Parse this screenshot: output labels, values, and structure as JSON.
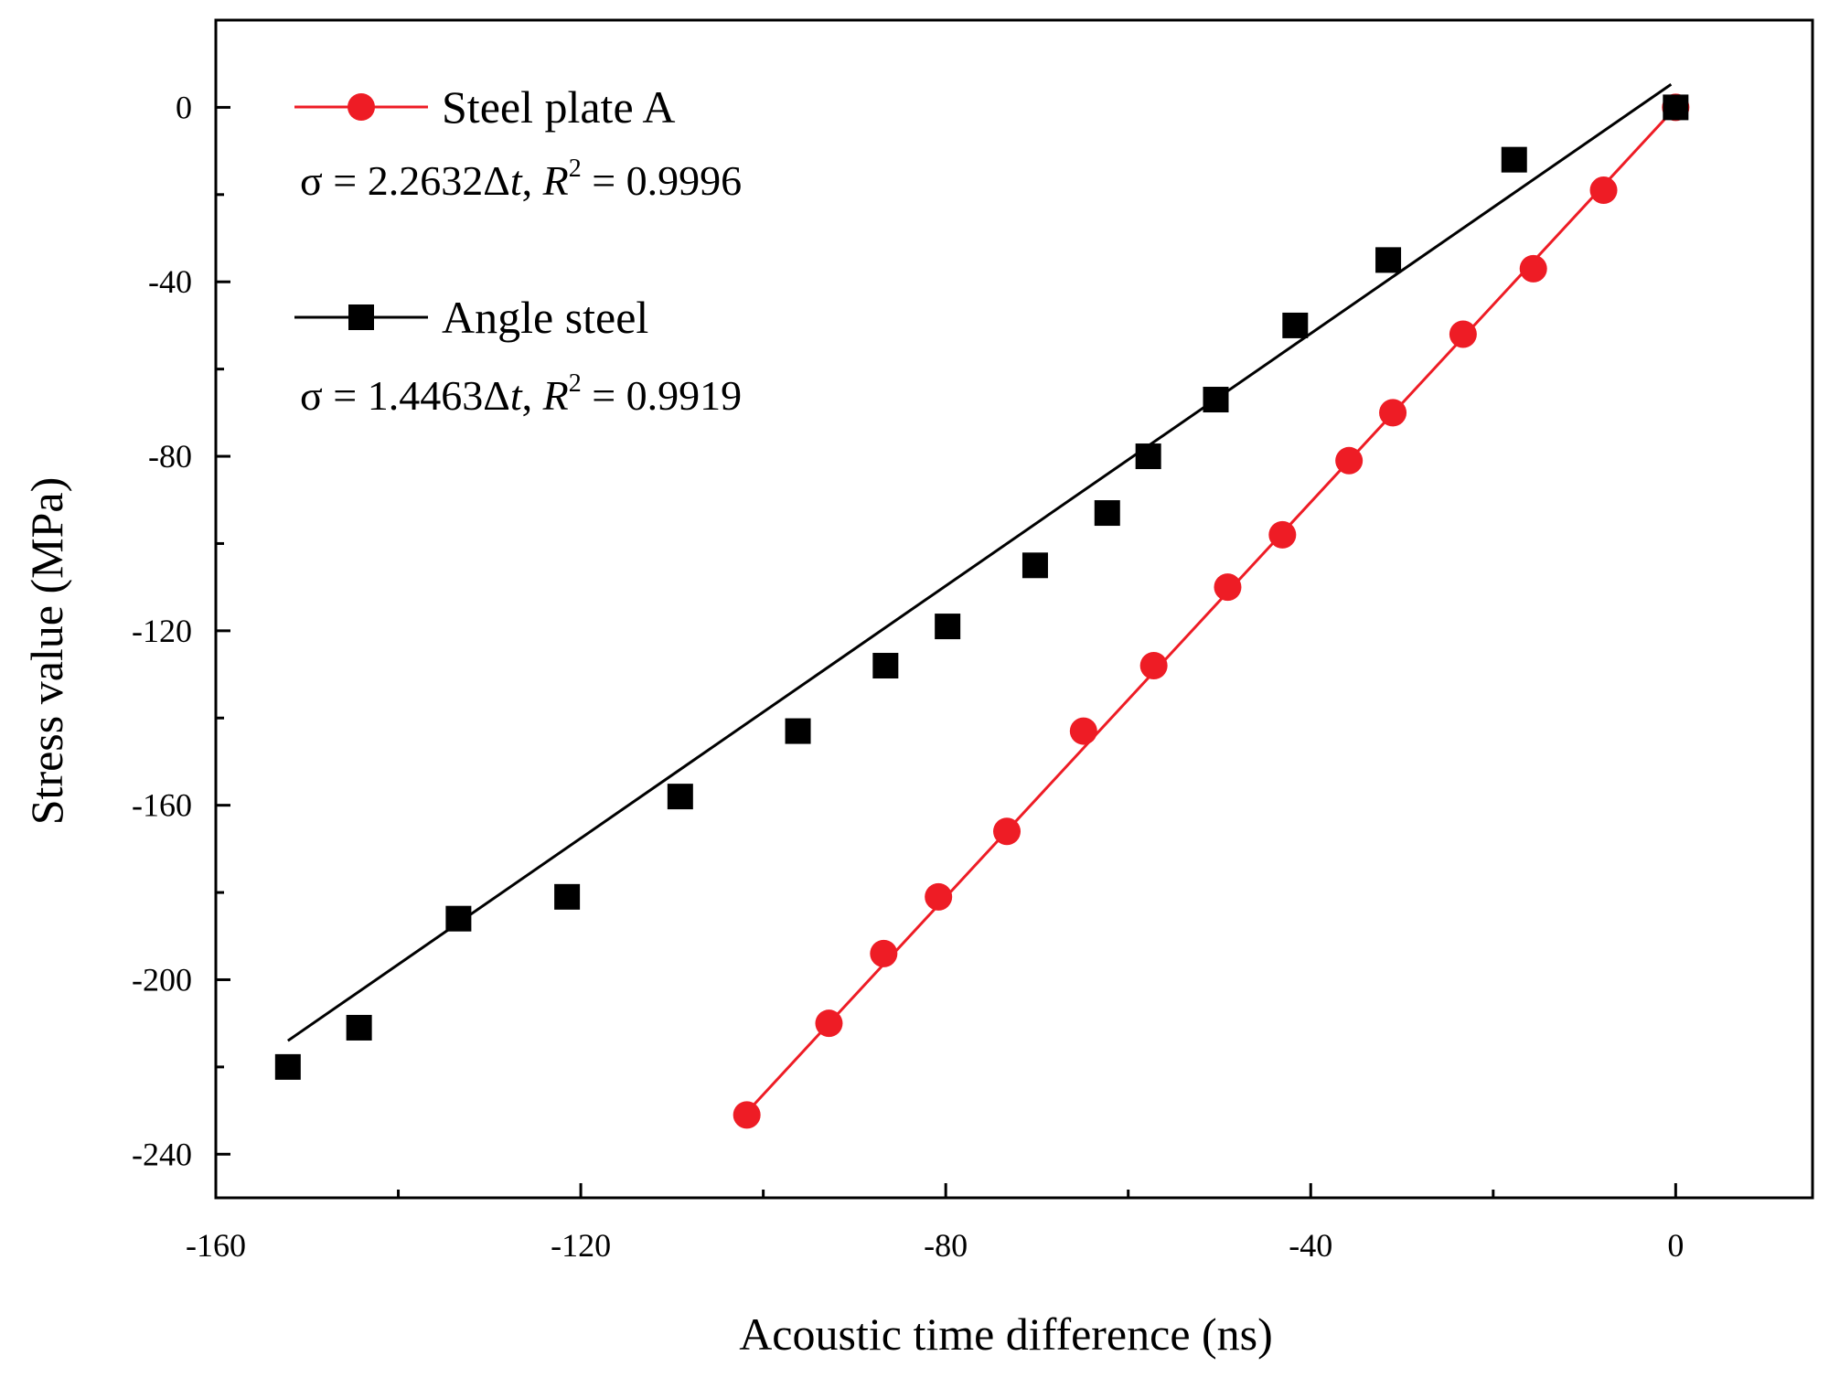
{
  "chart_data": {
    "type": "scatter",
    "title": "",
    "xlabel": "Acoustic time difference (ns)",
    "ylabel": "Stress value (MPa)",
    "xlim": [
      -160,
      15
    ],
    "ylim": [
      -250,
      20
    ],
    "xticks": [
      -160,
      -120,
      -80,
      -40,
      0
    ],
    "yticks": [
      0,
      -40,
      -80,
      -120,
      -160,
      -200,
      -240
    ],
    "grid": false,
    "legend_position": "top-left",
    "series": [
      {
        "name": "Steel plate A",
        "color": "#ee1c25",
        "marker": "circle",
        "x": [
          -101.8,
          -92.8,
          -86.8,
          -80.8,
          -73.3,
          -64.9,
          -57.2,
          -49.1,
          -43.1,
          -35.8,
          -31.0,
          -23.3,
          -15.6,
          -7.9,
          0
        ],
        "y": [
          -231,
          -210,
          -194,
          -181,
          -166,
          -143,
          -128,
          -110,
          -98,
          -81,
          -70,
          -52,
          -37,
          -19,
          0
        ],
        "fit": {
          "slope": 2.2632,
          "intercept": 0,
          "x_range": [
            -101.8,
            0
          ],
          "equation_prefix": "σ = 2.2632Δ",
          "equation_var": "t",
          "equation_sep": ", ",
          "r2_symbol": "R",
          "r2_exp": "2",
          "r2_value": " = 0.9996"
        }
      },
      {
        "name": "Angle steel",
        "color": "#000000",
        "marker": "square",
        "x": [
          -152.1,
          -144.3,
          -133.4,
          -121.5,
          -109.1,
          -96.2,
          -86.6,
          -79.8,
          -70.2,
          -62.3,
          -57.8,
          -50.4,
          -41.7,
          -31.5,
          -17.7,
          0
        ],
        "y": [
          -220,
          -211,
          -186,
          -181,
          -158,
          -143,
          -128,
          -119,
          -105,
          -93,
          -80,
          -67,
          -50,
          -35,
          -12,
          0
        ],
        "fit": {
          "slope": 1.4463,
          "intercept": 6,
          "x_range": [
            -152.1,
            -0.5
          ],
          "equation_prefix": "σ = 1.4463Δ",
          "equation_var": "t",
          "equation_sep": ", ",
          "r2_symbol": "R",
          "r2_exp": "2",
          "r2_value": " = 0.9919"
        }
      }
    ]
  }
}
